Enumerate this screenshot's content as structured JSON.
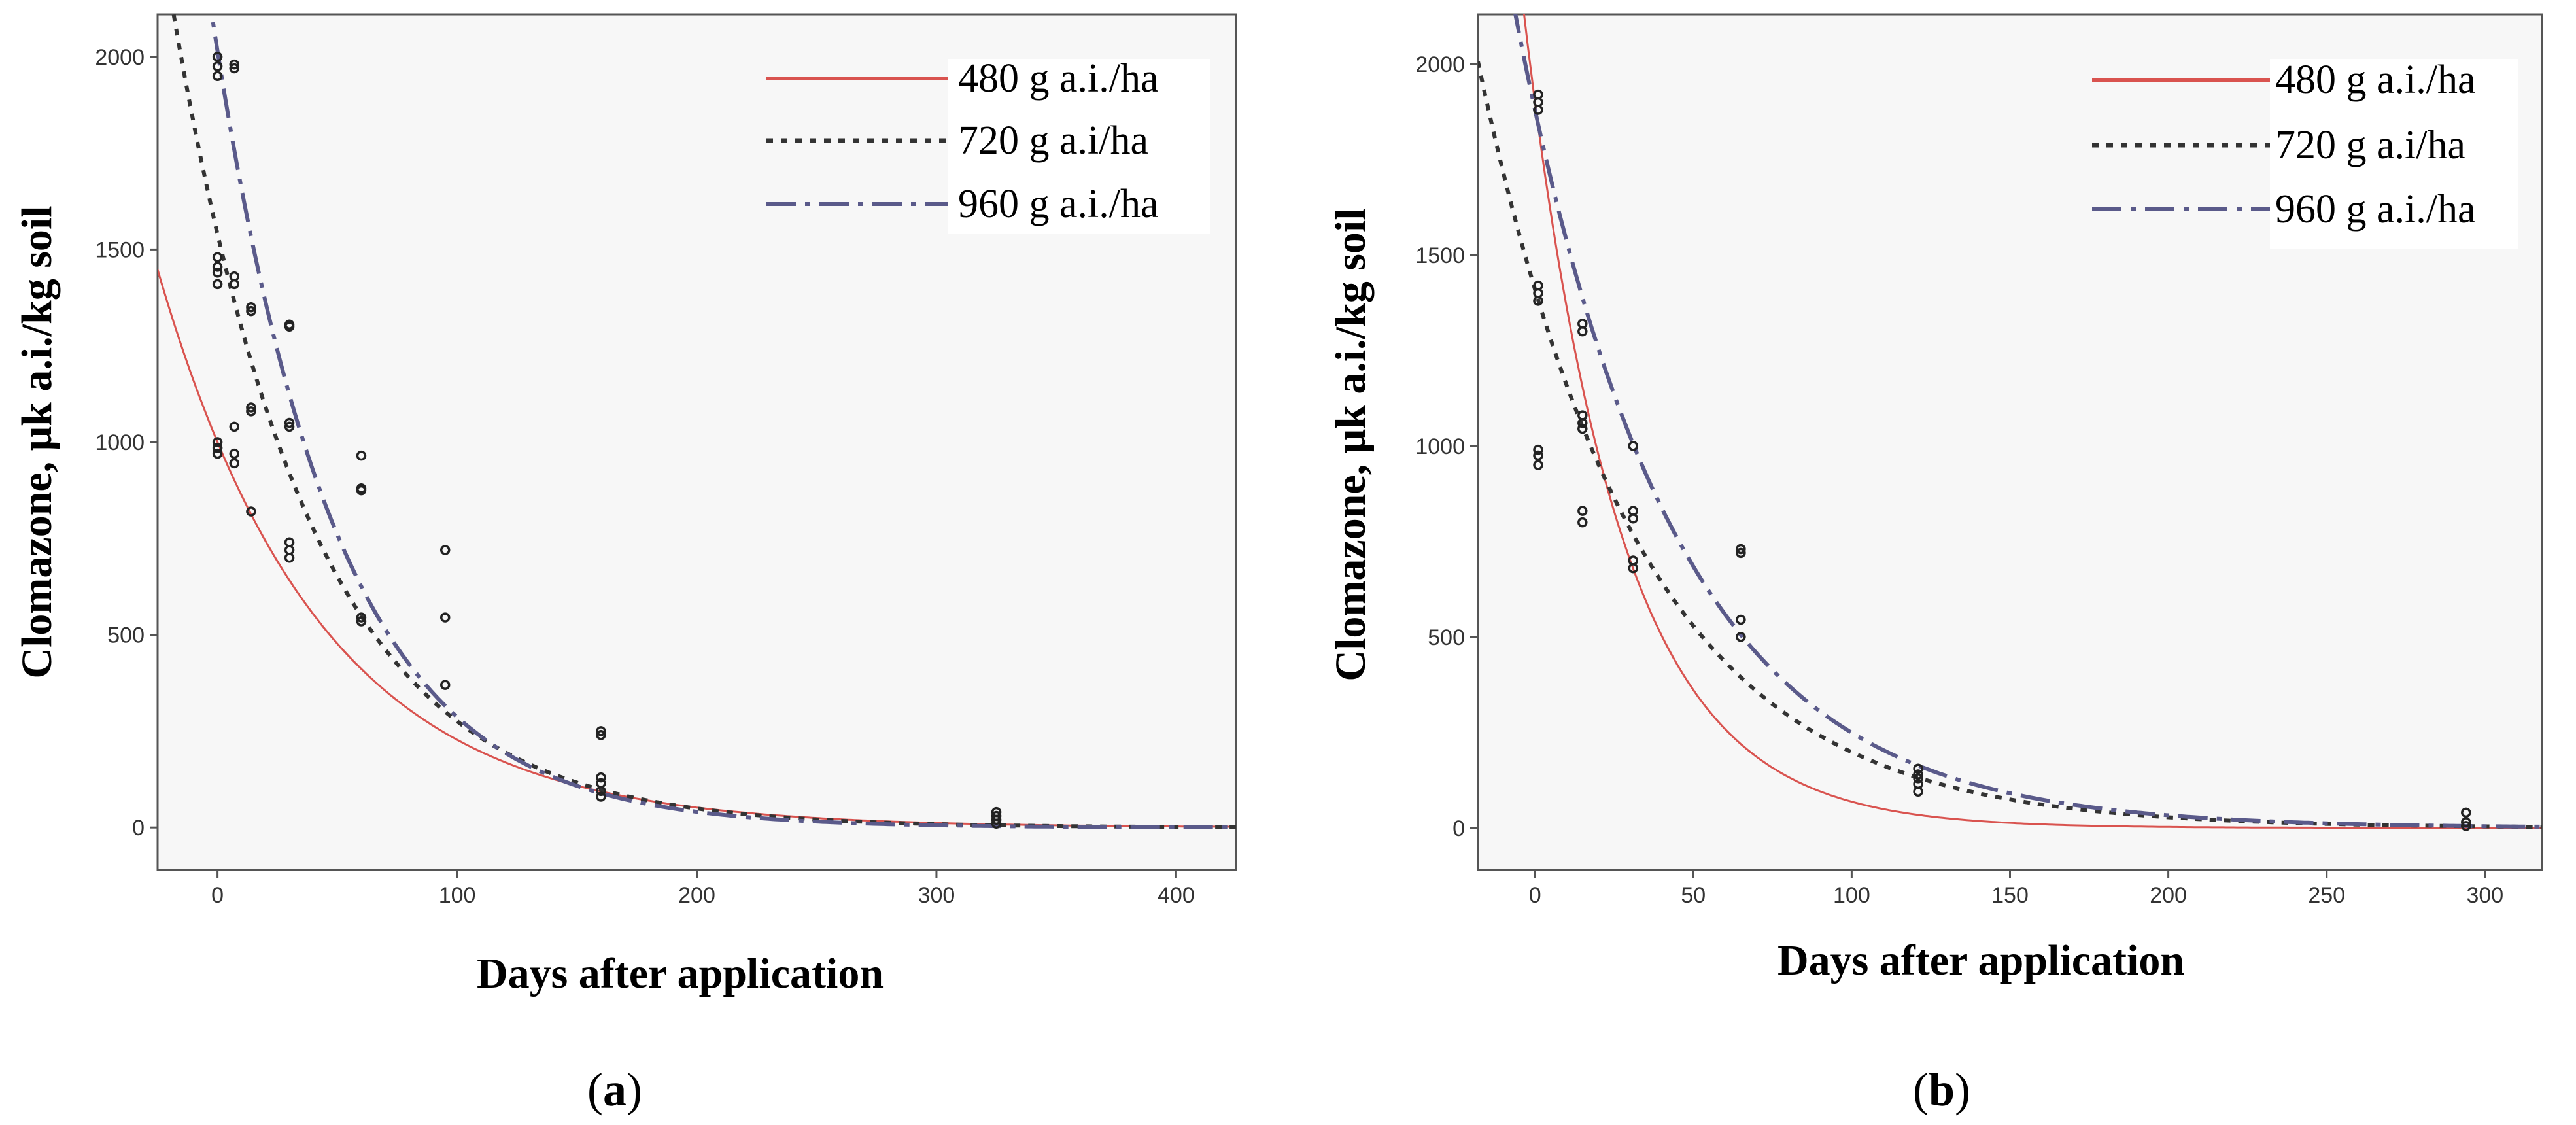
{
  "chart_data": [
    {
      "panel": "(a)",
      "panel_letter": "a",
      "type": "scatter",
      "xlabel": "Days after application",
      "ylabel": "Clomazone, μk a.i./kg soil",
      "xlim": [
        -25,
        425
      ],
      "ylim": [
        -110,
        2110
      ],
      "xticks": [
        0,
        100,
        200,
        300,
        400
      ],
      "yticks": [
        0,
        500,
        1000,
        1500,
        2000
      ],
      "legend_position": "top-right",
      "series": [
        {
          "name": "480 g a.i./ha",
          "style": "solid",
          "color": "#d9534f",
          "model": {
            "c0": 1000,
            "k": 0.0148
          }
        },
        {
          "name": "720 g a.i/ha",
          "style": "dotted",
          "color": "#333333",
          "model": {
            "c0": 1540,
            "k": 0.0172
          }
        },
        {
          "name": "960 g a.i./ha",
          "style": "dashdot",
          "color": "#5a5a8a",
          "model": {
            "c0": 2015,
            "k": 0.0195
          }
        }
      ],
      "points": [
        [
          0,
          1950
        ],
        [
          0,
          1975
        ],
        [
          0,
          2000
        ],
        [
          7,
          1980
        ],
        [
          7,
          1970
        ],
        [
          0,
          1480
        ],
        [
          0,
          1455
        ],
        [
          0,
          1440
        ],
        [
          0,
          1410
        ],
        [
          7,
          1430
        ],
        [
          7,
          1410
        ],
        [
          14,
          1350
        ],
        [
          14,
          1340
        ],
        [
          0,
          1000
        ],
        [
          0,
          985
        ],
        [
          0,
          970
        ],
        [
          7,
          1040
        ],
        [
          7,
          970
        ],
        [
          7,
          945
        ],
        [
          14,
          1090
        ],
        [
          14,
          1080
        ],
        [
          14,
          820
        ],
        [
          30,
          1305
        ],
        [
          30,
          1300
        ],
        [
          30,
          1050
        ],
        [
          30,
          1040
        ],
        [
          30,
          740
        ],
        [
          30,
          720
        ],
        [
          30,
          700
        ],
        [
          60,
          965
        ],
        [
          60,
          880
        ],
        [
          60,
          875
        ],
        [
          60,
          545
        ],
        [
          60,
          535
        ],
        [
          95,
          720
        ],
        [
          95,
          545
        ],
        [
          95,
          370
        ],
        [
          160,
          250
        ],
        [
          160,
          240
        ],
        [
          160,
          130
        ],
        [
          160,
          115
        ],
        [
          160,
          95
        ],
        [
          160,
          80
        ],
        [
          325,
          40
        ],
        [
          325,
          30
        ],
        [
          325,
          20
        ],
        [
          325,
          10
        ]
      ]
    },
    {
      "panel": "(b)",
      "panel_letter": "b",
      "type": "scatter",
      "xlabel": "Days after application",
      "ylabel": "Clomazone, μk a.i./kg soil",
      "xlim": [
        -18,
        318
      ],
      "ylim": [
        -110,
        2130
      ],
      "xticks": [
        0,
        50,
        100,
        150,
        200,
        250,
        300
      ],
      "yticks": [
        0,
        500,
        1000,
        1500,
        2000
      ],
      "legend_position": "top-right",
      "series": [
        {
          "name": "480 g a.i./ha",
          "style": "solid",
          "color": "#d9534f",
          "model": {
            "c0": 1900,
            "k": 0.0332
          }
        },
        {
          "name": "720 g a.i/ha",
          "style": "dotted",
          "color": "#333333",
          "model": {
            "c0": 1410,
            "k": 0.0196
          }
        },
        {
          "name": "960 g a.i./ha",
          "style": "dashdot",
          "color": "#5a5a8a",
          "model": {
            "c0": 1880,
            "k": 0.0202
          }
        }
      ],
      "points": [
        [
          1,
          1920
        ],
        [
          1,
          1900
        ],
        [
          1,
          1880
        ],
        [
          1,
          1420
        ],
        [
          1,
          1400
        ],
        [
          1,
          1380
        ],
        [
          1,
          990
        ],
        [
          1,
          975
        ],
        [
          1,
          950
        ],
        [
          15,
          1320
        ],
        [
          15,
          1300
        ],
        [
          15,
          1080
        ],
        [
          15,
          1060
        ],
        [
          15,
          1045
        ],
        [
          15,
          830
        ],
        [
          15,
          800
        ],
        [
          31,
          1000
        ],
        [
          31,
          830
        ],
        [
          31,
          810
        ],
        [
          31,
          700
        ],
        [
          31,
          680
        ],
        [
          65,
          730
        ],
        [
          65,
          720
        ],
        [
          65,
          545
        ],
        [
          65,
          500
        ],
        [
          121,
          155
        ],
        [
          121,
          140
        ],
        [
          121,
          130
        ],
        [
          121,
          115
        ],
        [
          121,
          95
        ],
        [
          294,
          40
        ],
        [
          294,
          15
        ],
        [
          294,
          5
        ]
      ]
    }
  ]
}
